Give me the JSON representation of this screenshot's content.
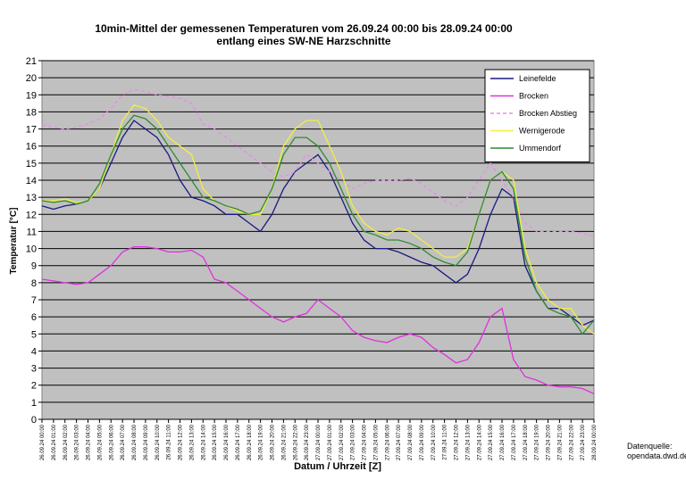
{
  "chart_data": {
    "type": "line",
    "title": "10min-Mittel der gemessenen Temperaturen vom 26.09.24 00:00 bis 28.09.24 00:00",
    "subtitle": "entlang eines SW-NE Harzschnitte",
    "x_label": "Datum / Uhrzeit [Z]",
    "y_label": "Temperatur [°C]",
    "source": [
      "Datenquelle:",
      "opendata.dwd.de"
    ],
    "categories": [
      "26.09.24 00:00",
      "26.09.24 01:00",
      "26.09.24 02:00",
      "26.09.24 03:00",
      "26.09.24 04:00",
      "26.09.24 05:00",
      "26.09.24 06:00",
      "26.09.24 07:00",
      "26.09.24 08:00",
      "26.09.24 09:00",
      "26.09.24 10:00",
      "26.09.24 11:00",
      "26.09.24 12:00",
      "26.09.24 13:00",
      "26.09.24 14:00",
      "26.09.24 15:00",
      "26.09.24 16:00",
      "26.09.24 17:00",
      "26.09.24 18:00",
      "26.09.24 19:00",
      "26.09.24 20:00",
      "26.09.24 21:00",
      "26.09.24 22:00",
      "26.09.24 23:00",
      "27.09.24 00:00",
      "27.09.24 01:00",
      "27.09.24 02:00",
      "27.09.24 03:00",
      "27.09.24 04:00",
      "27.09.24 05:00",
      "27.09.24 06:00",
      "27.09.24 07:00",
      "27.09.24 08:00",
      "27.09.24 09:00",
      "27.09.24 10:00",
      "27.09.24 11:00",
      "27.09.24 12:00",
      "27.09.24 13:00",
      "27.09.24 14:00",
      "27.09.24 15:00",
      "27.09.24 16:00",
      "27.09.24 17:00",
      "27.09.24 18:00",
      "27.09.24 19:00",
      "27.09.24 20:00",
      "27.09.24 21:00",
      "27.09.24 22:00",
      "27.09.24 23:00",
      "28.09.24 00:00"
    ],
    "series": [
      {
        "name": "Leinefelde",
        "color": "#1a1a80",
        "dashed": false,
        "values": [
          12.5,
          12.3,
          12.5,
          12.6,
          12.8,
          13.5,
          15,
          16.5,
          17.5,
          17,
          16.5,
          15.5,
          14,
          13,
          12.8,
          12.5,
          12,
          12,
          11.5,
          11,
          12,
          13.5,
          14.5,
          15,
          15.5,
          14.5,
          13,
          11.5,
          10.5,
          10,
          10,
          9.8,
          9.5,
          9.2,
          9,
          8.5,
          8,
          8.5,
          10,
          12,
          13.5,
          13,
          9,
          7.5,
          6.5,
          6.5,
          6,
          5.5,
          5.8
        ]
      },
      {
        "name": "Brocken",
        "color": "#e030e0",
        "dashed": false,
        "values": [
          8.2,
          8.1,
          8,
          7.9,
          8,
          8.5,
          9,
          9.8,
          10.1,
          10.1,
          10,
          9.8,
          9.8,
          9.9,
          9.5,
          8.2,
          8,
          7.5,
          7,
          6.5,
          6,
          5.7,
          6,
          6.2,
          7,
          6.5,
          6,
          5.2,
          4.8,
          4.6,
          4.5,
          4.8,
          5,
          4.8,
          4.2,
          3.8,
          3.3,
          3.5,
          4.5,
          6,
          6.5,
          3.5,
          2.5,
          2.3,
          2,
          1.9,
          1.9,
          1.8,
          1.5
        ]
      },
      {
        "name": "Brocken Abstieg",
        "color": "#e68ce6",
        "dashed": true,
        "values": [
          17.2,
          17.1,
          17,
          17.1,
          17.3,
          17.6,
          18.2,
          19,
          19.3,
          19.2,
          19,
          18.9,
          18.8,
          18.5,
          17.3,
          17,
          16.5,
          16,
          15.5,
          15,
          14.5,
          14.2,
          14.5,
          15.5,
          15,
          14.5,
          14,
          13.5,
          13.8,
          14,
          14,
          14,
          14.1,
          13.8,
          13.3,
          12.8,
          12.5,
          13,
          14,
          15,
          14,
          13,
          11.5,
          11,
          11,
          11,
          11,
          10.9,
          10.7
        ]
      },
      {
        "name": "Wernigerode",
        "color": "#f0f040",
        "dashed": false,
        "values": [
          12.8,
          12.8,
          12.9,
          12.7,
          12.8,
          13.5,
          15.5,
          17.5,
          18.4,
          18.2,
          17.5,
          16.5,
          16,
          15.5,
          13.5,
          12.8,
          12.5,
          12.2,
          12,
          12,
          13.5,
          16,
          17,
          17.5,
          17.5,
          16,
          14.5,
          12.5,
          11.5,
          11,
          10.8,
          11.2,
          11,
          10.5,
          10,
          9.5,
          9.5,
          10,
          12,
          14,
          14.5,
          14,
          10,
          8,
          7,
          6.5,
          6.5,
          5.5,
          5
        ]
      },
      {
        "name": "Ummendorf",
        "color": "#2e8b2e",
        "dashed": false,
        "values": [
          12.8,
          12.7,
          12.8,
          12.6,
          12.8,
          13.8,
          15.5,
          17,
          17.8,
          17.6,
          17,
          16,
          15,
          14,
          13,
          12.8,
          12.5,
          12.3,
          12,
          12.2,
          13.5,
          15.5,
          16.5,
          16.5,
          16,
          15,
          13.5,
          12,
          11,
          10.8,
          10.5,
          10.5,
          10.3,
          10,
          9.5,
          9.2,
          9,
          9.8,
          12,
          14,
          14.5,
          13.5,
          9.5,
          7.5,
          6.5,
          6.2,
          6,
          5,
          5.8
        ]
      }
    ],
    "ylim": [
      0,
      21
    ],
    "yticks": [
      0,
      1,
      2,
      3,
      4,
      5,
      6,
      7,
      8,
      9,
      10,
      11,
      12,
      13,
      14,
      15,
      16,
      17,
      18,
      19,
      20,
      21
    ],
    "grid": true,
    "legend": "top-right",
    "background": "#c0c0c0"
  }
}
